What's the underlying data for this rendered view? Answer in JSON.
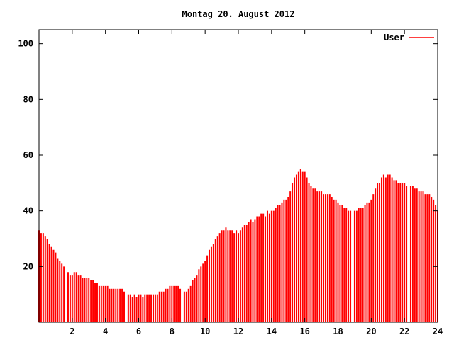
{
  "title": "Montag 20. August 2012",
  "legend": {
    "label": "User"
  },
  "colors": {
    "bars": "#ff0000",
    "axis": "#000000",
    "background": "#ffffff",
    "text": "#000000"
  },
  "chart_data": {
    "type": "bar",
    "style": "impulses",
    "title": "Montag 20. August 2012",
    "xlabel": "",
    "ylabel": "",
    "xlim": [
      0,
      24
    ],
    "ylim": [
      0,
      105
    ],
    "xticks": [
      2,
      4,
      6,
      8,
      10,
      12,
      14,
      16,
      18,
      20,
      22,
      24
    ],
    "yticks": [
      20,
      40,
      60,
      80,
      100
    ],
    "grid": false,
    "legend_position": "top-right",
    "series": [
      {
        "name": "User",
        "color": "#ff0000",
        "x_start": 0,
        "x_step": 0.125,
        "note": "value 0 = missing sample (white gap in impulses)",
        "values": [
          33,
          32,
          32,
          31,
          30,
          28,
          27,
          26,
          25,
          23,
          22,
          21,
          20,
          0,
          18,
          17,
          17,
          18,
          18,
          17,
          17,
          16,
          16,
          16,
          16,
          15,
          15,
          14,
          14,
          13,
          13,
          13,
          13,
          13,
          12,
          12,
          12,
          12,
          12,
          12,
          12,
          11,
          0,
          10,
          10,
          9,
          10,
          9,
          10,
          10,
          9,
          10,
          10,
          10,
          10,
          10,
          10,
          10,
          11,
          11,
          11,
          12,
          12,
          13,
          13,
          13,
          13,
          13,
          12,
          0,
          11,
          11,
          12,
          13,
          15,
          16,
          17,
          19,
          20,
          21,
          22,
          24,
          26,
          27,
          28,
          30,
          31,
          32,
          33,
          33,
          34,
          33,
          33,
          33,
          32,
          33,
          32,
          33,
          34,
          35,
          35,
          36,
          37,
          36,
          37,
          38,
          38,
          39,
          39,
          38,
          40,
          39,
          40,
          40,
          41,
          42,
          42,
          43,
          44,
          44,
          45,
          47,
          50,
          52,
          53,
          54,
          55,
          54,
          54,
          52,
          50,
          49,
          48,
          48,
          47,
          47,
          47,
          46,
          46,
          46,
          46,
          45,
          44,
          44,
          43,
          42,
          42,
          41,
          41,
          40,
          40,
          0,
          40,
          40,
          41,
          41,
          41,
          42,
          43,
          43,
          44,
          46,
          48,
          50,
          50,
          52,
          53,
          52,
          53,
          53,
          52,
          51,
          51,
          50,
          50,
          50,
          50,
          49,
          0,
          49,
          49,
          48,
          48,
          47,
          47,
          47,
          46,
          46,
          46,
          45,
          44,
          42,
          40
        ]
      }
    ]
  }
}
